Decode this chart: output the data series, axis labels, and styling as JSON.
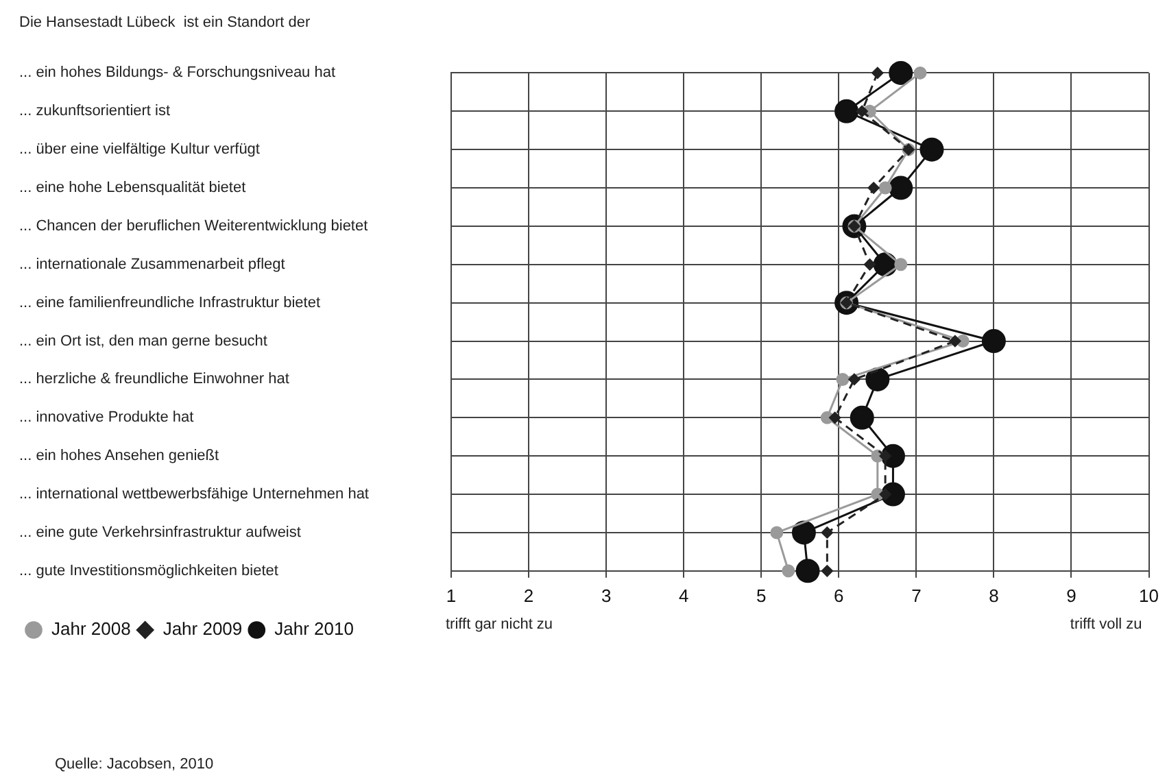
{
  "chart_data": {
    "type": "line",
    "orientation": "horizontal",
    "title": "Die Hansestadt Lübeck  ist ein Standort der",
    "categories": [
      "... ein hohes Bildungs- & Forschungsniveau hat",
      "... zukunftsorientiert ist",
      "... über eine vielfältige Kultur verfügt",
      "... eine hohe Lebensqualität bietet",
      "... Chancen der beruflichen Weiterentwicklung bietet",
      "... internationale Zusammenarbeit pflegt",
      "... eine familienfreundliche Infrastruktur bietet",
      "... ein Ort ist, den man gerne besucht",
      "... herzliche & freundliche Einwohner hat",
      "... innovative Produkte hat",
      "... ein hohes Ansehen genießt",
      "... international wettbewerbsfähige Unternehmen hat",
      "... eine gute Verkehrsinfrastruktur aufweist",
      "... gute Investitionsmöglichkeiten bietet"
    ],
    "series": [
      {
        "name": "Jahr 2008",
        "color": "#9a9a9a",
        "marker": "circle",
        "line_style": "solid",
        "values": [
          7.05,
          6.4,
          6.9,
          6.6,
          6.2,
          6.8,
          6.1,
          7.6,
          6.05,
          5.85,
          6.5,
          6.5,
          5.2,
          5.35
        ]
      },
      {
        "name": "Jahr 2009",
        "color": "#222222",
        "marker": "diamond",
        "line_style": "dashed",
        "values": [
          6.5,
          6.3,
          6.9,
          6.45,
          6.2,
          6.4,
          6.1,
          7.5,
          6.2,
          5.95,
          6.6,
          6.6,
          5.85,
          5.85
        ]
      },
      {
        "name": "Jahr 2010",
        "color": "#111111",
        "marker": "circle",
        "line_style": "solid",
        "values": [
          6.8,
          6.1,
          7.2,
          6.8,
          6.2,
          6.6,
          6.1,
          8.0,
          6.5,
          6.3,
          6.7,
          6.7,
          5.55,
          5.6
        ]
      }
    ],
    "xlim": [
      1,
      10
    ],
    "xticks": [
      1,
      2,
      3,
      4,
      5,
      6,
      7,
      8,
      9,
      10
    ],
    "grid": true,
    "legend": "bottom left",
    "annotations": [
      "trifft gar nicht zu",
      "trifft voll zu",
      "Quelle: Jacobsen, 2010"
    ]
  }
}
